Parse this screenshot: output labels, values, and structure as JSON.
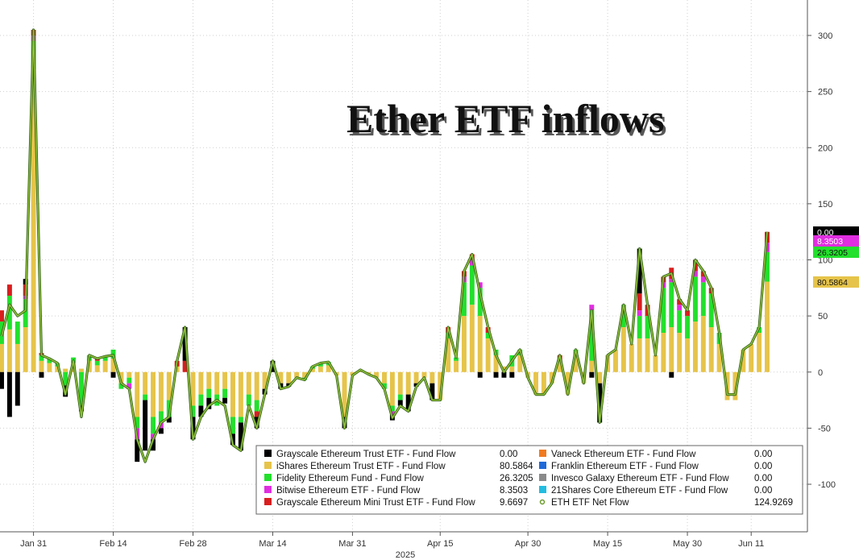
{
  "chart_data": {
    "type": "bar",
    "title": "Ether ETF inflows",
    "year_label": "2025",
    "x_tick_labels": [
      "Jan 31",
      "Feb 14",
      "Feb 28",
      "Mar 14",
      "Mar 31",
      "Apr 15",
      "Apr 30",
      "May 15",
      "May 30",
      "Jun 11"
    ],
    "ylim": [
      -130,
      330
    ],
    "y_ticks": [
      300,
      250,
      200,
      150,
      100,
      50,
      0,
      -50,
      -100
    ],
    "y_tick_labels": [
      "300",
      "250",
      "200",
      "150",
      "100",
      "50",
      "0",
      "-50",
      "-100"
    ],
    "grid": true,
    "legend_position": "bottom-right",
    "series": [
      {
        "name": "Grayscale Ethereum Trust ETF - Fund Flow",
        "last": "0.00",
        "color": "#000000"
      },
      {
        "name": "iShares Ethereum Trust ETF - Fund Flow",
        "last": "80.5864",
        "color": "#e6c44a"
      },
      {
        "name": "Fidelity Ethereum Fund - Fund Flow",
        "last": "26.3205",
        "color": "#22e02c"
      },
      {
        "name": "Bitwise Ethereum ETF - Fund Flow",
        "last": "8.3503",
        "color": "#e02ee0"
      },
      {
        "name": "Grayscale Ethereum Mini Trust ETF - Fund Flow",
        "last": "9.6697",
        "color": "#d81e1e"
      },
      {
        "name": "Vaneck Ethereum ETF - Fund Flow",
        "last": "0.00",
        "color": "#f07a1e"
      },
      {
        "name": "Franklin Ethereum ETF - Fund Flow",
        "last": "0.00",
        "color": "#1e6ad8"
      },
      {
        "name": "Invesco Galaxy Ethereum ETF - Fund Flow",
        "last": "0.00",
        "color": "#8a8a8a"
      },
      {
        "name": "21Shares Core Ethereum ETF - Fund Flow",
        "last": "0.00",
        "color": "#22bde0"
      },
      {
        "name": "ETH ETF Net Flow",
        "last": "124.9269",
        "color": "#6a9a2a"
      }
    ],
    "flows": [
      [
        -15,
        25,
        20,
        0,
        10
      ],
      [
        -40,
        38,
        30,
        0,
        10
      ],
      [
        -30,
        25,
        20,
        0,
        0
      ],
      [
        5,
        40,
        25,
        3,
        10
      ],
      [
        0,
        270,
        25,
        5,
        5
      ],
      [
        -5,
        10,
        5,
        0,
        2
      ],
      [
        0,
        8,
        4,
        0,
        0
      ],
      [
        0,
        5,
        3,
        0,
        0
      ],
      [
        -10,
        3,
        -12,
        0,
        0
      ],
      [
        0,
        8,
        5,
        0,
        0
      ],
      [
        -5,
        3,
        -30,
        0,
        0
      ],
      [
        0,
        10,
        5,
        0,
        0
      ],
      [
        0,
        6,
        4,
        0,
        2
      ],
      [
        0,
        10,
        4,
        0,
        0
      ],
      [
        -5,
        12,
        8,
        0,
        0
      ],
      [
        0,
        -10,
        -5,
        0,
        0
      ],
      [
        0,
        -5,
        -5,
        -5,
        0
      ],
      [
        -20,
        -40,
        -10,
        -10,
        0
      ],
      [
        -45,
        -20,
        -5,
        0,
        0
      ],
      [
        -10,
        -40,
        -15,
        -5,
        0
      ],
      [
        -5,
        -35,
        -10,
        -5,
        0
      ],
      [
        -5,
        -25,
        -15,
        0,
        0
      ],
      [
        0,
        5,
        0,
        0,
        5
      ],
      [
        30,
        0,
        0,
        0,
        10
      ],
      [
        -20,
        -30,
        -10,
        0,
        0
      ],
      [
        -10,
        -20,
        -10,
        0,
        0
      ],
      [
        -10,
        -15,
        -8,
        0,
        0
      ],
      [
        0,
        -20,
        -10,
        0,
        0
      ],
      [
        -5,
        -15,
        -8,
        0,
        0
      ],
      [
        -10,
        -40,
        -15,
        0,
        0
      ],
      [
        -25,
        -40,
        -5,
        0,
        0
      ],
      [
        0,
        -20,
        -10,
        0,
        0
      ],
      [
        -10,
        -25,
        -10,
        0,
        -5
      ],
      [
        -5,
        -15,
        0,
        0,
        0
      ],
      [
        10,
        0,
        0,
        0,
        0
      ],
      [
        -5,
        -10,
        0,
        0,
        0
      ],
      [
        -3,
        -10,
        0,
        0,
        0
      ],
      [
        0,
        -5,
        0,
        0,
        0
      ],
      [
        0,
        -5,
        -2,
        0,
        0
      ],
      [
        0,
        3,
        2,
        0,
        0
      ],
      [
        0,
        5,
        3,
        0,
        0
      ],
      [
        0,
        6,
        3,
        0,
        0
      ],
      [
        0,
        -3,
        0,
        0,
        0
      ],
      [
        -10,
        -40,
        0,
        0,
        0
      ],
      [
        0,
        -3,
        0,
        0,
        0
      ],
      [
        0,
        2,
        0,
        0,
        0
      ],
      [
        0,
        -2,
        0,
        0,
        0
      ],
      [
        0,
        -5,
        0,
        0,
        0
      ],
      [
        0,
        -10,
        -5,
        0,
        0
      ],
      [
        -5,
        -30,
        -5,
        -3,
        0
      ],
      [
        -5,
        -20,
        -5,
        0,
        0
      ],
      [
        -15,
        -20,
        0,
        0,
        0
      ],
      [
        -3,
        -10,
        0,
        0,
        0
      ],
      [
        0,
        -5,
        0,
        0,
        0
      ],
      [
        -15,
        -10,
        0,
        0,
        0
      ],
      [
        0,
        -25,
        0,
        0,
        0
      ],
      [
        0,
        30,
        5,
        0,
        5
      ],
      [
        0,
        10,
        3,
        0,
        0
      ],
      [
        0,
        50,
        30,
        5,
        5
      ],
      [
        0,
        60,
        35,
        5,
        5
      ],
      [
        -5,
        50,
        25,
        5,
        0
      ],
      [
        0,
        30,
        5,
        0,
        5
      ],
      [
        -5,
        15,
        5,
        0,
        0
      ],
      [
        -5,
        5,
        0,
        0,
        0
      ],
      [
        -5,
        5,
        10,
        0,
        0
      ],
      [
        0,
        15,
        5,
        0,
        0
      ],
      [
        0,
        -5,
        0,
        0,
        0
      ],
      [
        0,
        -20,
        0,
        0,
        0
      ],
      [
        0,
        -20,
        0,
        0,
        0
      ],
      [
        0,
        -10,
        0,
        0,
        0
      ],
      [
        0,
        10,
        0,
        0,
        5
      ],
      [
        0,
        -20,
        0,
        0,
        0
      ],
      [
        0,
        15,
        5,
        0,
        0
      ],
      [
        0,
        -10,
        0,
        0,
        0
      ],
      [
        -5,
        10,
        45,
        5,
        0
      ],
      [
        -35,
        -10,
        0,
        0,
        0
      ],
      [
        0,
        15,
        0,
        0,
        0
      ],
      [
        0,
        20,
        0,
        0,
        0
      ],
      [
        0,
        40,
        20,
        0,
        0
      ],
      [
        0,
        25,
        0,
        0,
        0
      ],
      [
        40,
        30,
        20,
        5,
        15
      ],
      [
        0,
        30,
        20,
        0,
        10
      ],
      [
        0,
        15,
        0,
        0,
        0
      ],
      [
        0,
        35,
        40,
        5,
        5
      ],
      [
        -5,
        40,
        40,
        3,
        10
      ],
      [
        0,
        35,
        20,
        5,
        5
      ],
      [
        0,
        30,
        20,
        0,
        5
      ],
      [
        0,
        45,
        40,
        5,
        10
      ],
      [
        0,
        50,
        30,
        5,
        5
      ],
      [
        0,
        40,
        30,
        0,
        5
      ],
      [
        0,
        25,
        10,
        0,
        0
      ],
      [
        0,
        -25,
        0,
        0,
        0
      ],
      [
        0,
        -25,
        0,
        0,
        0
      ],
      [
        0,
        20,
        0,
        0,
        0
      ],
      [
        0,
        25,
        0,
        0,
        0
      ],
      [
        0,
        35,
        5,
        0,
        0
      ],
      [
        0,
        80.5864,
        26.3205,
        8.3503,
        9.6697
      ]
    ],
    "net_flow": [
      32,
      60,
      50,
      55,
      305,
      15,
      12,
      8,
      -20,
      10,
      -40,
      15,
      12,
      14,
      15,
      -10,
      -15,
      -60,
      -80,
      -60,
      -45,
      -40,
      10,
      40,
      -60,
      -40,
      -30,
      -25,
      -30,
      -65,
      -70,
      -30,
      -50,
      -20,
      10,
      -15,
      -13,
      -5,
      -7,
      5,
      8,
      9,
      -3,
      -50,
      -3,
      2,
      -2,
      -5,
      -15,
      -41,
      -30,
      -35,
      -13,
      -5,
      -25,
      -25,
      40,
      13,
      90,
      105,
      70,
      40,
      15,
      0,
      10,
      20,
      -5,
      -20,
      -20,
      -10,
      15,
      -20,
      20,
      -10,
      55,
      -45,
      15,
      20,
      60,
      25,
      110,
      60,
      15,
      85,
      88,
      65,
      55,
      100,
      90,
      75,
      35,
      -20,
      -20,
      20,
      25,
      40,
      124.9269
    ],
    "tags": [
      {
        "value": "0.00",
        "y": 124.9269,
        "bg": "#000000",
        "fg": "#ffffff"
      },
      {
        "value": "8.3503",
        "y": 116.5,
        "bg": "#e02ee0",
        "fg": "#ffffff"
      },
      {
        "value": "26.3205",
        "y": 106.5,
        "bg": "#22e02c",
        "fg": "#111111"
      },
      {
        "value": "80.5864",
        "y": 80.5864,
        "bg": "#e6c44a",
        "fg": "#111111"
      }
    ]
  }
}
